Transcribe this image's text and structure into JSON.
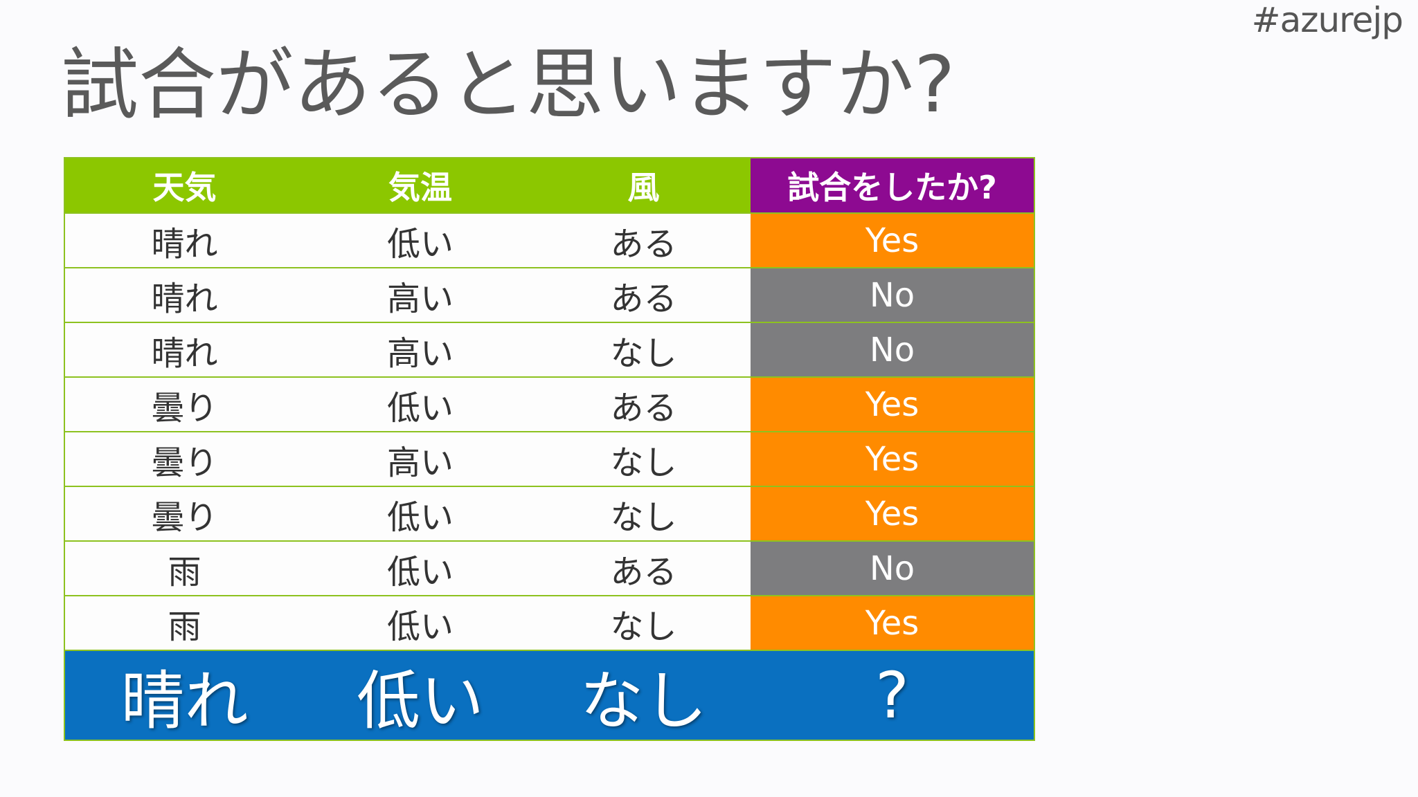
{
  "hashtag": "#azurejp",
  "title": "試合があると思いますか?",
  "table": {
    "headers": [
      "天気",
      "気温",
      "風",
      "試合をしたか?"
    ],
    "rows": [
      [
        "晴れ",
        "低い",
        "ある",
        "Yes"
      ],
      [
        "晴れ",
        "高い",
        "ある",
        "No"
      ],
      [
        "晴れ",
        "高い",
        "なし",
        "No"
      ],
      [
        "曇り",
        "低い",
        "ある",
        "Yes"
      ],
      [
        "曇り",
        "高い",
        "なし",
        "Yes"
      ],
      [
        "曇り",
        "低い",
        "なし",
        "Yes"
      ],
      [
        "雨",
        "低い",
        "ある",
        "No"
      ],
      [
        "雨",
        "低い",
        "なし",
        "Yes"
      ]
    ],
    "query": [
      "晴れ",
      "低い",
      "なし",
      "?"
    ]
  },
  "colors": {
    "header_green": "#8cc700",
    "header_purple": "#8d0a91",
    "yes": "#ff8b00",
    "no": "#7d7d7f",
    "query_row": "#0a70c0",
    "border": "#8dc21f"
  }
}
